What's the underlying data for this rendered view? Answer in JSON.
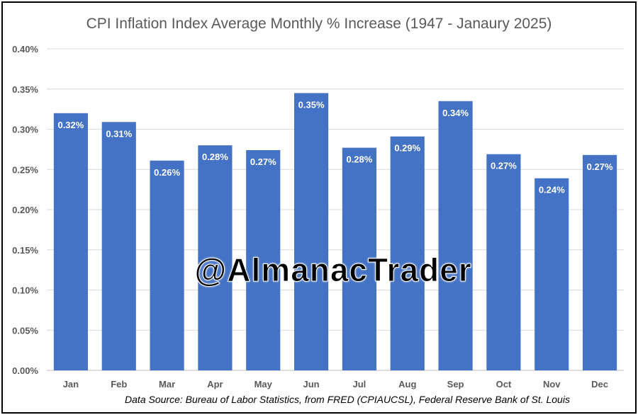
{
  "chart_data": {
    "type": "bar",
    "title": "CPI Inflation Index Average Monthly % Increase (1947 - Janaury 2025)",
    "categories": [
      "Jan",
      "Feb",
      "Mar",
      "Apr",
      "May",
      "Jun",
      "Jul",
      "Aug",
      "Sep",
      "Oct",
      "Nov",
      "Dec"
    ],
    "values": [
      0.32,
      0.309,
      0.261,
      0.28,
      0.274,
      0.345,
      0.277,
      0.291,
      0.335,
      0.269,
      0.239,
      0.268
    ],
    "data_labels": [
      "0.32%",
      "0.31%",
      "0.26%",
      "0.28%",
      "0.27%",
      "0.35%",
      "0.28%",
      "0.29%",
      "0.34%",
      "0.27%",
      "0.24%",
      "0.27%"
    ],
    "yticks": [
      0.0,
      0.05,
      0.1,
      0.15,
      0.2,
      0.25,
      0.3,
      0.35,
      0.4
    ],
    "ytick_labels": [
      "0.00%",
      "0.05%",
      "0.10%",
      "0.15%",
      "0.20%",
      "0.25%",
      "0.30%",
      "0.35%",
      "0.40%"
    ],
    "ylim": [
      0,
      0.4
    ],
    "xlabel": "",
    "ylabel": "",
    "grid": true,
    "legend": "none",
    "bar_color": "#4472C4",
    "grid_color": "#D9D9D9",
    "label_color": "#FFFFFF",
    "tick_color": "#595959"
  },
  "watermark": "@AlmanacTrader",
  "source": "Data Source: Bureau of Labor Statistics, from FRED (CPIAUCSL), Federal Reserve Bank of St. Louis"
}
